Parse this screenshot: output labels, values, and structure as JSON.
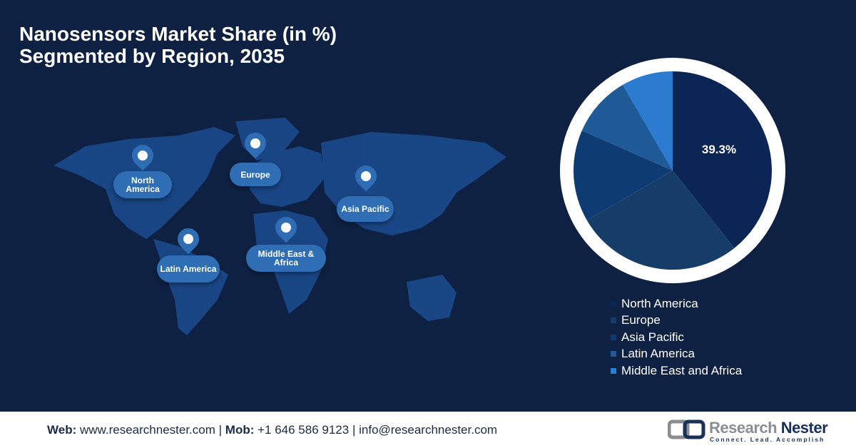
{
  "title_line1": "Nanosensors Market Share (in %)",
  "title_line2": "Segmented by Region, 2035",
  "map_labels": {
    "north_america": "North America",
    "europe": "Europe",
    "asia_pacific": "Asia Pacific",
    "latin_america": "Latin America",
    "mea": "Middle East & Africa"
  },
  "chart_data": {
    "type": "pie",
    "categories": [
      "North America",
      "Europe",
      "Asia Pacific",
      "Latin America",
      "Middle East and Africa"
    ],
    "values": [
      39.3,
      27.3,
      15.0,
      10.0,
      8.4
    ],
    "colors": [
      "#0b2555",
      "#163d68",
      "#0f3b73",
      "#1f5a98",
      "#2b7bd1"
    ],
    "data_labels": [
      "39.3%"
    ],
    "legend_position": "bottom"
  },
  "footer": {
    "web_label": "Web:",
    "web": "www.researchnester.com",
    "mob_label": "Mob:",
    "mob": "+1 646 586 9123",
    "email": "info@researchnester.com",
    "sep": "|"
  },
  "logo": {
    "name_a": "Research ",
    "name_b": "Nester",
    "tagline": "Connect. Lead. Accomplish"
  }
}
